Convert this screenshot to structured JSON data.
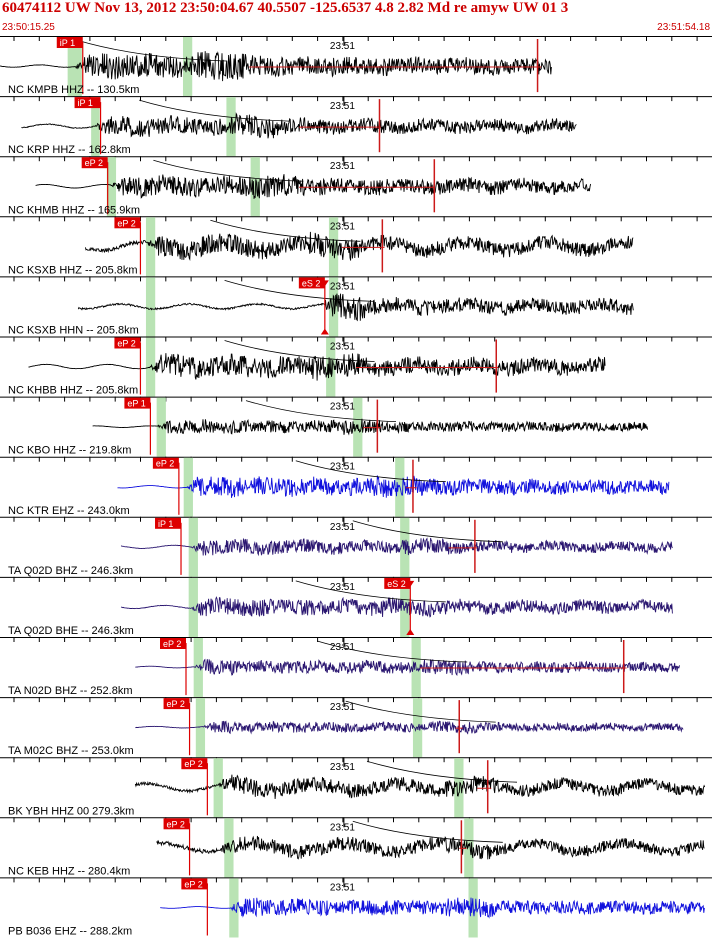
{
  "header": {
    "title": "60474112 UW Nov 13, 2012 23:50:04.67   40.5507 -125.6537  4.8 2.82 Md re amyw UW 01   3",
    "start_time": "23:50:15.25",
    "end_time": "23:51:54.18"
  },
  "time_tick_label": "23:51",
  "colors": {
    "header_text": "#cc0000",
    "pick_box": "#dd0000",
    "pick_text": "#ffffff",
    "window_band": "#b9e3b4",
    "tick_mark": "#000000",
    "black_trace": "#000000",
    "blue_trace": "#1010dd",
    "purple_trace": "#2a1670",
    "red_tail": "#cc1a1a"
  },
  "traces": [
    {
      "station": "NC KMPB HHZ -- 130.5km",
      "pick": "iP 1",
      "color": "black",
      "start": 0.0,
      "onset": 0.105,
      "pick_pos": 0.105,
      "end": 0.775,
      "max_at": 0.31,
      "amp": 0.55,
      "osc": 0.1,
      "band": [
        0.095,
        0.115
      ],
      "band2": [
        0.257,
        0.27
      ],
      "arr_s": 0.262,
      "redline": [
        0.35,
        0.76
      ],
      "spike_at": 0.755,
      "arrow": "",
      "bg_amp": 0.05,
      "scat": 0.2,
      "seed": 11
    },
    {
      "station": "NC KRP HHZ -- 162.8km",
      "pick": "iP 1",
      "color": "black",
      "start": 0.03,
      "onset": 0.132,
      "pick_pos": 0.13,
      "end": 0.81,
      "max_at": 0.35,
      "amp": 0.42,
      "osc": 0.22,
      "band": [
        0.128,
        0.14
      ],
      "band2": [
        0.318,
        0.331
      ],
      "arr_s": 0.35,
      "redline": [
        0.42,
        0.535
      ],
      "spike_at": 0.533,
      "arrow": "",
      "bg_amp": 0.12,
      "scat": 0.35,
      "seed": 23
    },
    {
      "station": "NC KHMB HHZ -- 165.9km",
      "pick": "eP 2",
      "color": "black",
      "start": 0.05,
      "onset": 0.155,
      "pick_pos": 0.14,
      "end": 0.83,
      "max_at": 0.38,
      "amp": 0.45,
      "osc": 0.18,
      "band": [
        0.15,
        0.163
      ],
      "band2": [
        0.352,
        0.365
      ],
      "arr_s": 0.37,
      "redline": [
        0.42,
        0.61
      ],
      "spike_at": 0.61,
      "arrow": "",
      "bg_amp": 0.06,
      "scat": 0.2,
      "seed": 37
    },
    {
      "station": "NC KSXB HHZ -- 205.8km",
      "pick": "eP 2",
      "color": "black",
      "start": 0.12,
      "onset": 0.205,
      "pick_pos": 0.186,
      "end": 0.89,
      "max_at": 0.47,
      "amp": 0.45,
      "osc": 0.42,
      "band": [
        0.205,
        0.218
      ],
      "band2": [
        0.462,
        0.475
      ],
      "arr_s": 0.45,
      "redline": [
        0.48,
        0.54
      ],
      "spike_at": 0.537,
      "arrow": "",
      "bg_amp": 0.35,
      "scat": 0.5,
      "seed": 41
    },
    {
      "station": "NC KSXB HHN -- 205.8km",
      "pick": "eS 2",
      "color": "black",
      "start": 0.11,
      "onset": 0.45,
      "pick_pos": 0.445,
      "end": 0.89,
      "max_at": 0.48,
      "amp": 0.4,
      "osc": 0.28,
      "band": [
        0.205,
        0.218
      ],
      "band2": [
        0.462,
        0.475
      ],
      "arr_s": 0.47,
      "redline": null,
      "spike_at": null,
      "arrow": "both",
      "bg_amp": 0.2,
      "scat": 0.45,
      "seed": 53
    },
    {
      "station": "NC KHBB HHZ -- 205.8km",
      "pick": "eP 2",
      "color": "black",
      "start": 0.04,
      "onset": 0.21,
      "pick_pos": 0.186,
      "end": 0.85,
      "max_at": 0.47,
      "amp": 0.5,
      "osc": 0.2,
      "band": [
        0.205,
        0.218
      ],
      "band2": [
        0.458,
        0.471
      ],
      "arr_s": 0.47,
      "redline": [
        0.5,
        0.7
      ],
      "spike_at": 0.697,
      "arrow": "",
      "bg_amp": 0.06,
      "scat": 0.25,
      "seed": 67
    },
    {
      "station": "NC KBO HHZ -- 219.8km",
      "pick": "eP 1",
      "color": "black",
      "start": 0.13,
      "onset": 0.22,
      "pick_pos": 0.2,
      "end": 0.91,
      "max_at": 0.5,
      "amp": 0.3,
      "osc": 0.12,
      "band": [
        0.22,
        0.233
      ],
      "band2": [
        0.496,
        0.509
      ],
      "arr_s": 0.5,
      "redline": [
        0.51,
        0.535
      ],
      "spike_at": 0.53,
      "arrow": "",
      "bg_amp": 0.06,
      "scat": 0.2,
      "seed": 79
    },
    {
      "station": "NC KTR EHZ -- 243.0km",
      "pick": "eP 2",
      "color": "blue",
      "start": 0.165,
      "onset": 0.262,
      "pick_pos": 0.24,
      "end": 0.94,
      "max_at": 0.56,
      "amp": 0.45,
      "osc": 0.12,
      "band": [
        0.258,
        0.271
      ],
      "band2": [
        0.555,
        0.568
      ],
      "arr_s": 0.57,
      "redline": [
        0.57,
        0.585
      ],
      "spike_at": 0.58,
      "arrow": "",
      "bg_amp": 0.03,
      "scat": 0.15,
      "seed": 83
    },
    {
      "station": "TA Q02D BHZ -- 246.3km",
      "pick": "iP 1",
      "color": "purple",
      "start": 0.17,
      "onset": 0.268,
      "pick_pos": 0.243,
      "end": 0.945,
      "max_at": 0.6,
      "amp": 0.33,
      "osc": 0.22,
      "band": [
        0.265,
        0.278
      ],
      "band2": [
        0.562,
        0.575
      ],
      "arr_s": 0.65,
      "redline": [
        0.63,
        0.67
      ],
      "spike_at": 0.667,
      "arrow": "",
      "bg_amp": 0.07,
      "scat": 0.3,
      "seed": 97
    },
    {
      "station": "TA Q02D BHE -- 246.3km",
      "pick": "eS 2",
      "color": "purple",
      "start": 0.17,
      "onset": 0.268,
      "pick_pos": 0.565,
      "end": 0.945,
      "max_at": 0.57,
      "amp": 0.4,
      "osc": 0.18,
      "band": [
        0.265,
        0.278
      ],
      "band2": [
        0.562,
        0.575
      ],
      "arr_s": 0.57,
      "redline": null,
      "spike_at": null,
      "arrow": "both",
      "bg_amp": 0.07,
      "scat": 0.3,
      "seed": 101
    },
    {
      "station": "TA N02D BHZ -- 252.8km",
      "pick": "eP 2",
      "color": "purple",
      "start": 0.19,
      "onset": 0.272,
      "pick_pos": 0.25,
      "end": 0.955,
      "max_at": 0.63,
      "amp": 0.32,
      "osc": 0.12,
      "band": [
        0.272,
        0.285
      ],
      "band2": [
        0.578,
        0.591
      ],
      "arr_s": 0.6,
      "redline": [
        0.59,
        0.88
      ],
      "spike_at": 0.876,
      "arrow": "",
      "bg_amp": 0.05,
      "scat": 0.2,
      "seed": 113
    },
    {
      "station": "TA M02C BHZ -- 253.0km",
      "pick": "eP 2",
      "color": "purple",
      "start": 0.19,
      "onset": 0.285,
      "pick_pos": 0.255,
      "end": 0.96,
      "max_at": 0.64,
      "amp": 0.25,
      "osc": 0.14,
      "band": [
        0.275,
        0.288
      ],
      "band2": [
        0.58,
        0.593
      ],
      "arr_s": 0.64,
      "redline": [
        0.64,
        0.65
      ],
      "spike_at": 0.645,
      "arrow": "",
      "bg_amp": 0.08,
      "scat": 0.3,
      "seed": 127
    },
    {
      "station": "BK YBH HHZ 00 279.3km",
      "pick": "eP 2",
      "color": "black",
      "start": 0.19,
      "onset": 0.305,
      "pick_pos": 0.28,
      "end": 0.99,
      "max_at": 0.66,
      "amp": 0.38,
      "osc": 0.45,
      "band": [
        0.3,
        0.313
      ],
      "band2": [
        0.638,
        0.651
      ],
      "arr_s": 0.67,
      "redline": [
        0.67,
        0.69
      ],
      "spike_at": 0.685,
      "arrow": "",
      "bg_amp": 0.3,
      "scat": 0.5,
      "seed": 131
    },
    {
      "station": "NC KEB HHZ -- 280.4km",
      "pick": "eP 2",
      "color": "black",
      "start": 0.22,
      "onset": 0.305,
      "pick_pos": 0.255,
      "end": 0.99,
      "max_at": 0.66,
      "amp": 0.35,
      "osc": 0.55,
      "band": [
        0.315,
        0.328
      ],
      "band2": [
        0.652,
        0.665
      ],
      "arr_s": 0.65,
      "redline": [
        0.645,
        0.655
      ],
      "spike_at": 0.648,
      "arrow": "",
      "bg_amp": 0.45,
      "scat": 0.55,
      "seed": 139
    },
    {
      "station": "PB B036 EHZ -- 288.2km",
      "pick": "eP 2",
      "color": "blue",
      "start": 0.225,
      "onset": 0.322,
      "pick_pos": 0.28,
      "end": 0.99,
      "max_at": 0.66,
      "amp": 0.4,
      "osc": 0.1,
      "band": [
        0.322,
        0.335
      ],
      "band2": [
        0.658,
        0.671
      ],
      "arr_s": null,
      "redline": null,
      "spike_at": null,
      "arrow": "",
      "bg_amp": 0.02,
      "scat": 0.12,
      "seed": 149
    }
  ]
}
